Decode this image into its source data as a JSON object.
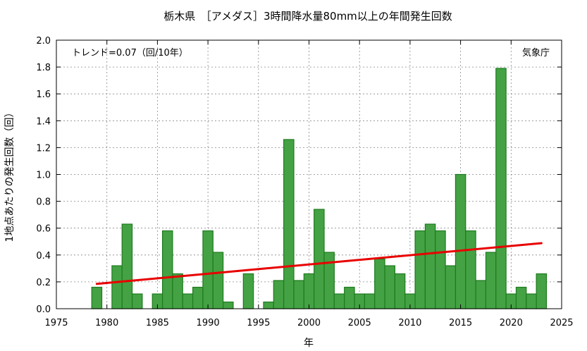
{
  "chart_data": {
    "type": "bar",
    "title": "栃木県　［アメダス］3時間降水量80mm以上の年間発生回数",
    "xlabel": "年",
    "ylabel": "1地点あたりの発生回数（回）",
    "xlim": [
      1975,
      2025
    ],
    "ylim": [
      0.0,
      2.0
    ],
    "x_ticks": [
      1975,
      1980,
      1985,
      1990,
      1995,
      2000,
      2005,
      2010,
      2015,
      2020,
      2025
    ],
    "y_ticks": [
      0.0,
      0.2,
      0.4,
      0.6,
      0.8,
      1.0,
      1.2,
      1.4,
      1.6,
      1.8,
      2.0
    ],
    "y_tick_labels": [
      "0.0",
      "0.2",
      "0.4",
      "0.6",
      "0.8",
      "1.0",
      "1.2",
      "1.4",
      "1.6",
      "1.8",
      "2.0"
    ],
    "grid": true,
    "bar_color": "#44a244",
    "bar_edge_color": "#1e7a1e",
    "trend_color": "#e80000",
    "series": [
      {
        "x": [
          1979,
          1980,
          1981,
          1982,
          1983,
          1984,
          1985,
          1986,
          1987,
          1988,
          1989,
          1990,
          1991,
          1992,
          1993,
          1994,
          1995,
          1996,
          1997,
          1998,
          1999,
          2000,
          2001,
          2002,
          2003,
          2004,
          2005,
          2006,
          2007,
          2008,
          2009,
          2010,
          2011,
          2012,
          2013,
          2014,
          2015,
          2016,
          2017,
          2018,
          2019,
          2020,
          2021,
          2022,
          2023
        ],
        "values": [
          0.16,
          0.0,
          0.32,
          0.63,
          0.11,
          0.0,
          0.11,
          0.58,
          0.26,
          0.11,
          0.16,
          0.58,
          0.42,
          0.05,
          0.0,
          0.26,
          0.0,
          0.05,
          0.21,
          1.26,
          0.21,
          0.26,
          0.74,
          0.42,
          0.11,
          0.16,
          0.11,
          0.11,
          0.37,
          0.32,
          0.26,
          0.11,
          0.58,
          0.63,
          0.58,
          0.32,
          1.0,
          0.58,
          0.21,
          0.42,
          1.79,
          0.11,
          0.16,
          0.11,
          0.26
        ]
      }
    ],
    "trend": {
      "x": [
        1979,
        2023
      ],
      "y": [
        0.185,
        0.488
      ]
    },
    "trend_label": "トレンド=0.07（回/10年）",
    "source_label": "気象庁"
  }
}
